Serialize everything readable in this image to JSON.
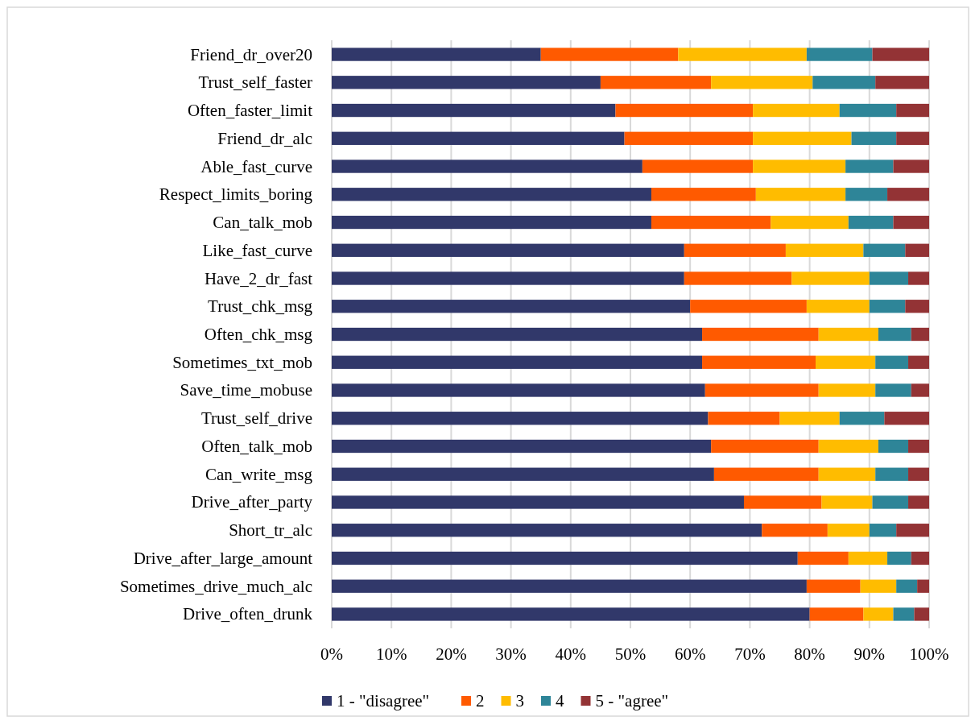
{
  "chart_data": {
    "type": "bar",
    "orientation": "horizontal",
    "stacked": true,
    "categories": [
      "Friend_dr_over20",
      "Trust_self_faster",
      "Often_faster_limit",
      "Friend_dr_alc",
      "Able_fast_curve",
      "Respect_limits_boring",
      "Can_talk_mob",
      "Like_fast_curve",
      "Have_2_dr_fast",
      "Trust_chk_msg",
      "Often_chk_msg",
      "Sometimes_txt_mob",
      "Save_time_mobuse",
      "Trust_self_drive",
      "Often_talk_mob",
      "Can_write_msg",
      "Drive_after_party",
      "Short_tr_alc",
      "Drive_after_large_amount",
      "Sometimes_drive_much_alc",
      "Drive_often_drunk"
    ],
    "series": [
      {
        "name": "1 - \"disagree\"",
        "color": "#31386a",
        "values": [
          35,
          45,
          47.5,
          49,
          52,
          53.5,
          53.5,
          59,
          59,
          60,
          62,
          62,
          62.5,
          63,
          63.5,
          64,
          69,
          72,
          78,
          79.5,
          80
        ]
      },
      {
        "name": "2",
        "color": "#ff5a00",
        "values": [
          23,
          18.5,
          23,
          21.5,
          18.5,
          17.5,
          20,
          17,
          18,
          19.5,
          19.5,
          19,
          19,
          12,
          18,
          17.5,
          13,
          11,
          8.5,
          9,
          9
        ]
      },
      {
        "name": "3",
        "color": "#ffbc00",
        "values": [
          21.5,
          17,
          14.5,
          16.5,
          15.5,
          15,
          13,
          13,
          13,
          10.5,
          10,
          10,
          9.5,
          10,
          10,
          9.5,
          8.5,
          7,
          6.5,
          6,
          5
        ]
      },
      {
        "name": "4",
        "color": "#2e8598",
        "values": [
          11,
          10.5,
          9.5,
          7.5,
          8,
          7,
          7.5,
          7,
          6.5,
          6,
          5.5,
          5.5,
          6,
          7.5,
          5,
          5.5,
          6,
          4.5,
          4,
          3.5,
          3.5
        ]
      },
      {
        "name": "5 - \"agree\"",
        "color": "#933335",
        "values": [
          9.5,
          9,
          5.5,
          5.5,
          6,
          7,
          6,
          4,
          3.5,
          4,
          3,
          3.5,
          3,
          7.5,
          3.5,
          3.5,
          3.5,
          5.5,
          3,
          2,
          2.5
        ]
      }
    ],
    "xlim": [
      0,
      100
    ],
    "xticks": [
      {
        "value": 0,
        "label": "0%"
      },
      {
        "value": 10,
        "label": "10%"
      },
      {
        "value": 20,
        "label": "20%"
      },
      {
        "value": 30,
        "label": "30%"
      },
      {
        "value": 40,
        "label": "40%"
      },
      {
        "value": 50,
        "label": "50%"
      },
      {
        "value": 60,
        "label": "60%"
      },
      {
        "value": 70,
        "label": "70%"
      },
      {
        "value": 80,
        "label": "80%"
      },
      {
        "value": 90,
        "label": "90%"
      },
      {
        "value": 100,
        "label": "100%"
      }
    ],
    "grid": "x",
    "legend": "bottom"
  }
}
